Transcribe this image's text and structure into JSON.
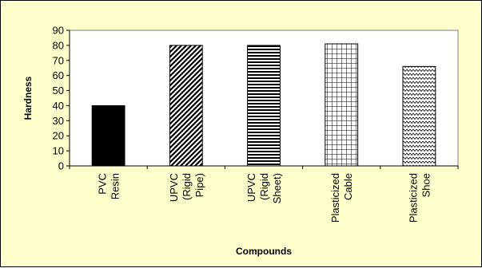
{
  "chart_data": {
    "type": "bar",
    "categories": [
      [
        "PVC",
        "Resin"
      ],
      [
        "UPVC",
        "(Rigid",
        "Pipe)"
      ],
      [
        "UPVC",
        "(Rigid",
        "Sheet)"
      ],
      [
        "Plasticized",
        "Cable"
      ],
      [
        "Plasticized",
        "Shoe"
      ]
    ],
    "values": [
      40,
      80,
      80,
      81,
      66
    ],
    "patterns": [
      "solid",
      "diagonal",
      "horizontal",
      "grid",
      "zigzag"
    ],
    "xlabel": "Compounds",
    "ylabel": "Hardness",
    "ylim": [
      0,
      90
    ],
    "yticks": [
      0,
      10,
      20,
      30,
      40,
      50,
      60,
      70,
      80,
      90
    ],
    "grid": false,
    "legend": "none",
    "colors": {
      "background": "#ffffcc",
      "plot_area": "#ffffff",
      "bar_fill": "#000000"
    }
  }
}
